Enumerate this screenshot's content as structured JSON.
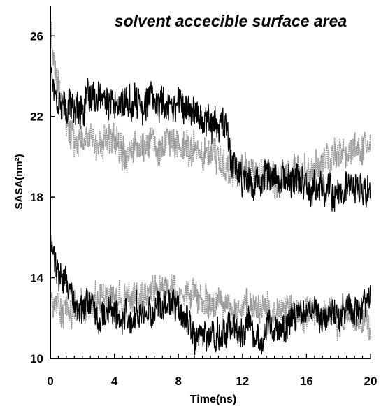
{
  "chart_data": {
    "type": "line",
    "title": "solvent accecible surface area",
    "xlabel": "Time(ns)",
    "ylabel": "SASA(nm²)",
    "xlim": [
      0,
      20
    ],
    "ylim": [
      10,
      27.5
    ],
    "x_ticks": [
      0,
      4,
      8,
      12,
      16,
      20
    ],
    "y_ticks": [
      10,
      14,
      18,
      22,
      26
    ],
    "grid": false,
    "legend": "none",
    "series": [
      {
        "color": "#000000",
        "style": "solid",
        "x": [
          0,
          0.2,
          0.5,
          1,
          2,
          3,
          4,
          5,
          6,
          7,
          8,
          9,
          10,
          11,
          11.5,
          12,
          13,
          14,
          15,
          16,
          17,
          18,
          19,
          20
        ],
        "y": [
          25.0,
          23.6,
          23.0,
          22.4,
          22.6,
          22.8,
          22.5,
          22.6,
          22.8,
          22.6,
          22.8,
          22.2,
          21.8,
          21.2,
          19.5,
          18.6,
          19.0,
          18.8,
          18.9,
          18.6,
          18.5,
          18.3,
          18.4,
          18.2
        ],
        "noise": 0.8
      },
      {
        "color": "#9a9a9a",
        "style": "dotted",
        "x": [
          0,
          0.2,
          0.5,
          1,
          2,
          3,
          4,
          5,
          6,
          7,
          8,
          9,
          10,
          11,
          12,
          13,
          14,
          15,
          16,
          17,
          18,
          19,
          20
        ],
        "y": [
          27.0,
          24.6,
          23.2,
          21.6,
          20.9,
          20.7,
          20.8,
          20.5,
          20.7,
          20.5,
          20.6,
          20.4,
          20.3,
          19.6,
          19.3,
          19.0,
          19.0,
          19.1,
          19.2,
          19.6,
          20.0,
          20.4,
          20.6
        ],
        "noise": 0.8
      },
      {
        "color": "#000000",
        "style": "solid",
        "x": [
          0,
          0.3,
          0.8,
          1.5,
          2,
          3,
          4,
          5,
          6,
          7,
          8,
          9,
          10,
          11,
          12,
          13,
          14,
          15,
          16,
          17,
          18,
          19,
          20
        ],
        "y": [
          15.8,
          14.8,
          13.8,
          12.8,
          12.4,
          12.3,
          12.2,
          12.2,
          12.4,
          12.6,
          12.4,
          11.2,
          11.0,
          11.4,
          11.6,
          11.5,
          11.6,
          12.0,
          12.3,
          12.1,
          12.2,
          12.4,
          12.8
        ],
        "noise": 0.75
      },
      {
        "color": "#9a9a9a",
        "style": "dotted",
        "x": [
          0,
          0.5,
          1,
          2,
          3,
          4,
          5,
          6,
          7,
          8,
          9,
          10,
          11,
          12,
          13,
          14,
          15,
          16,
          17,
          18,
          19,
          20
        ],
        "y": [
          12.6,
          12.4,
          12.2,
          12.6,
          12.9,
          13.0,
          12.9,
          13.1,
          13.4,
          13.5,
          13.1,
          12.6,
          12.4,
          12.3,
          12.6,
          12.3,
          12.5,
          12.2,
          12.3,
          12.0,
          12.0,
          11.8
        ],
        "noise": 0.75
      }
    ]
  }
}
